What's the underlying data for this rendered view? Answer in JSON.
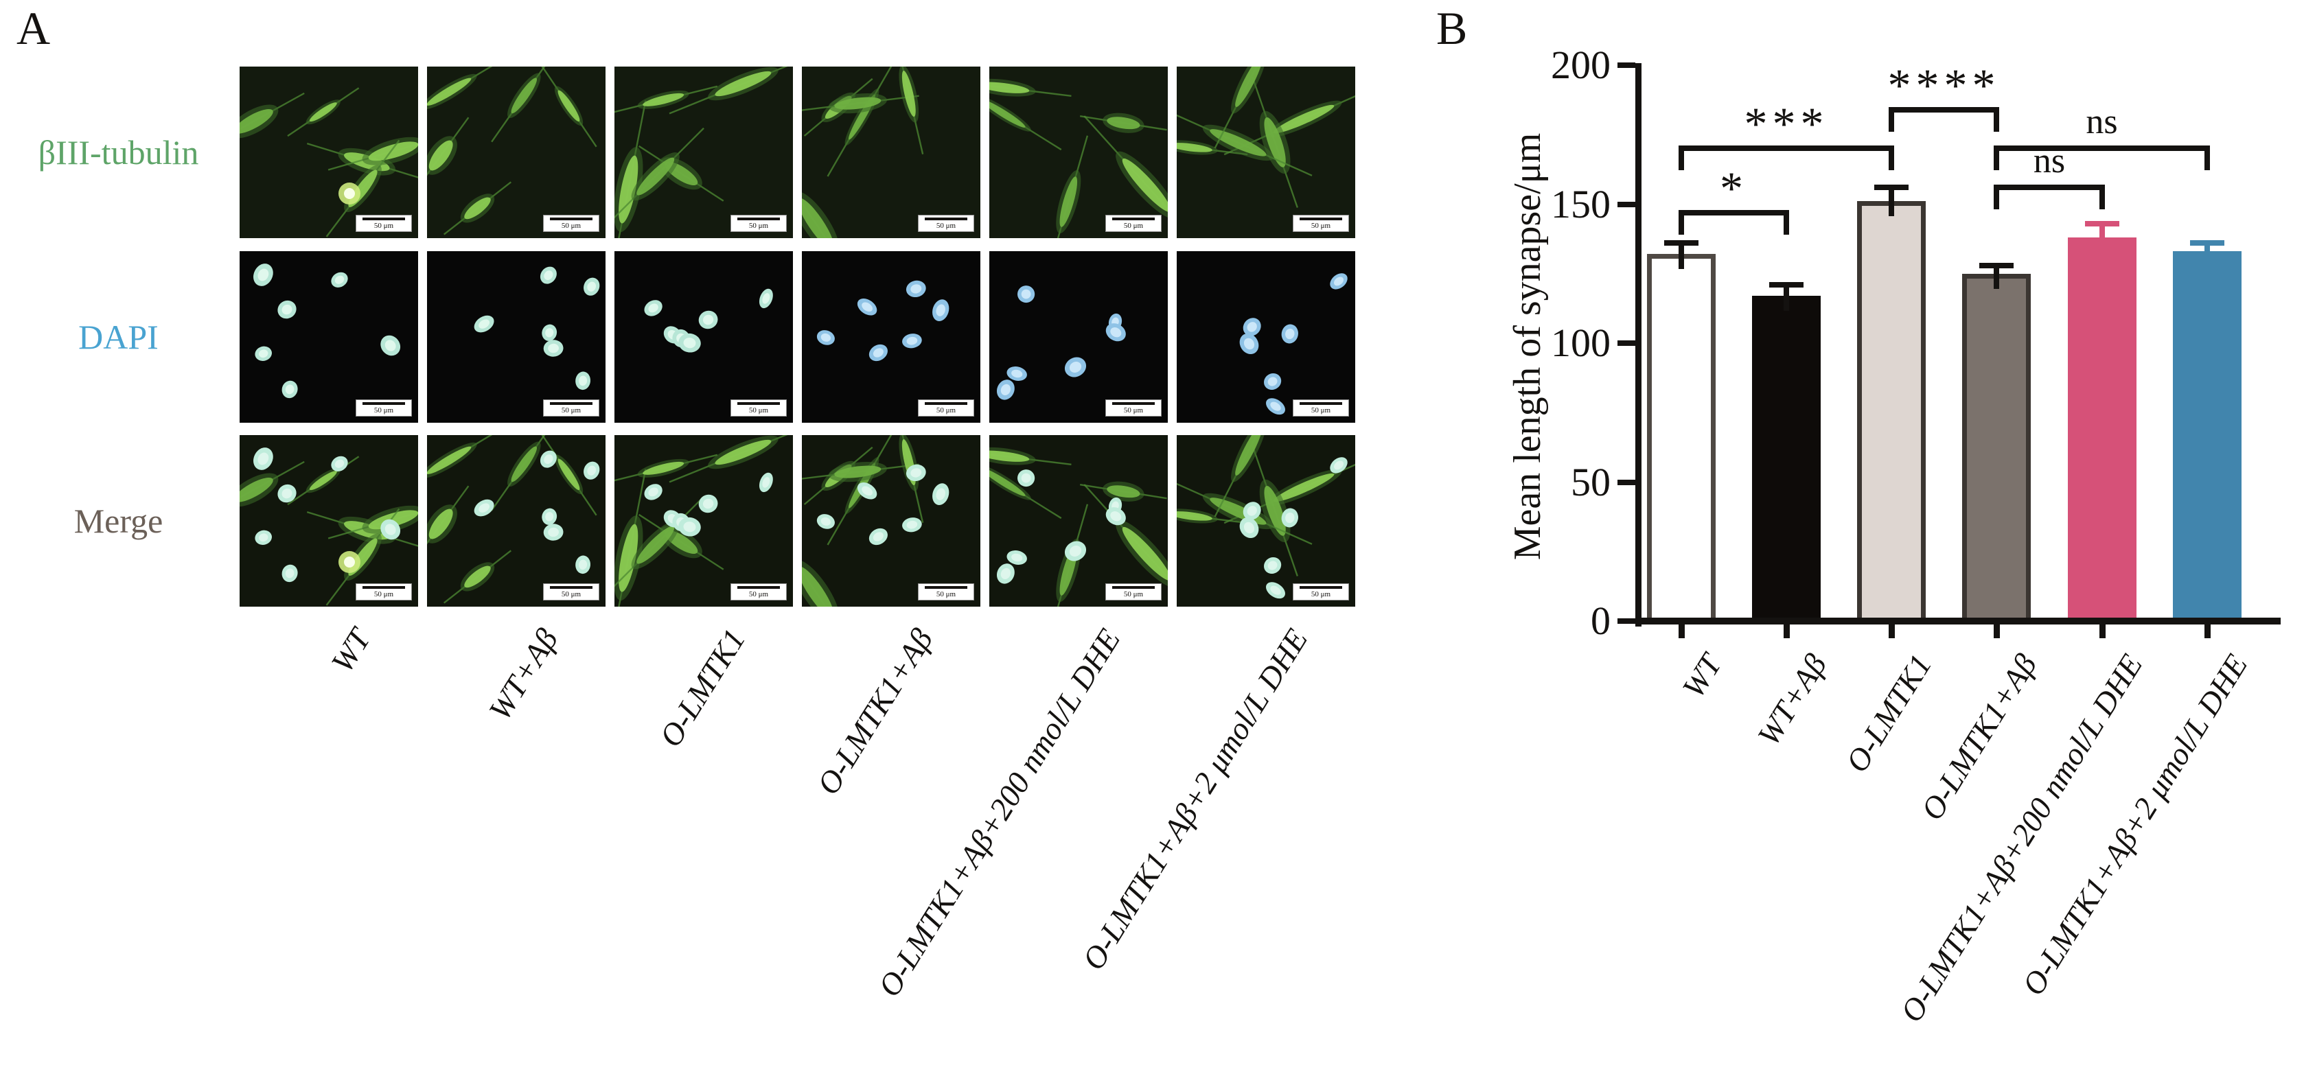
{
  "figure": {
    "panel_a_label": "A",
    "panel_b_label": "B"
  },
  "panel_a": {
    "row_labels": [
      {
        "label": "βIII-tubulin",
        "color": "#5ea468"
      },
      {
        "label": "DAPI",
        "color": "#49a3d1"
      },
      {
        "label": "Merge",
        "color": "#6b6058"
      }
    ],
    "column_labels": [
      "WT",
      "WT+Aβ",
      "O-LMTK1",
      "O-LMTK1+Aβ",
      "O-LMTK1+Aβ+200 nmol/L DHE",
      "O-LMTK1+Aβ+2 μmol/L DHE"
    ],
    "scale_bar_label": "50 μm"
  },
  "chart_data": {
    "type": "bar",
    "title": "",
    "xlabel": "",
    "ylabel": "Mean length of synapse/μm",
    "categories": [
      "WT",
      "WT+Aβ",
      "O-LMTK1",
      "O-LMTK1+Aβ",
      "O-LMTK1+Aβ+200 nmol/L DHE",
      "O-LMTK1+Aβ+2 μmol/L DHE"
    ],
    "values": [
      132,
      117,
      151,
      125,
      138,
      133
    ],
    "errors": [
      4,
      4,
      5,
      3,
      5,
      3
    ],
    "ylim": [
      0,
      200
    ],
    "yticks": [
      0,
      50,
      100,
      150,
      200
    ],
    "grid": false,
    "legend_position": "none",
    "bar_colors": [
      "#ffffff",
      "#0e0b09",
      "#ded6d1",
      "#7b726c",
      "#d65178",
      "#4185ad"
    ],
    "bar_border_colors": [
      "#4f4944",
      "#0e0b09",
      "#3b3632",
      "#3b3632",
      "#d65178",
      "#4185ad"
    ],
    "error_colors": [
      "#141210",
      "#141210",
      "#141210",
      "#141210",
      "#d65178",
      "#4185ad"
    ],
    "significance": [
      {
        "from": 0,
        "to": 1,
        "label": "*",
        "y": 148
      },
      {
        "from": 0,
        "to": 2,
        "label": "***",
        "y": 171
      },
      {
        "from": 2,
        "to": 3,
        "label": "****",
        "y": 185
      },
      {
        "from": 3,
        "to": 4,
        "label": "ns",
        "y": 157
      },
      {
        "from": 3,
        "to": 5,
        "label": "ns",
        "y": 171
      }
    ]
  }
}
